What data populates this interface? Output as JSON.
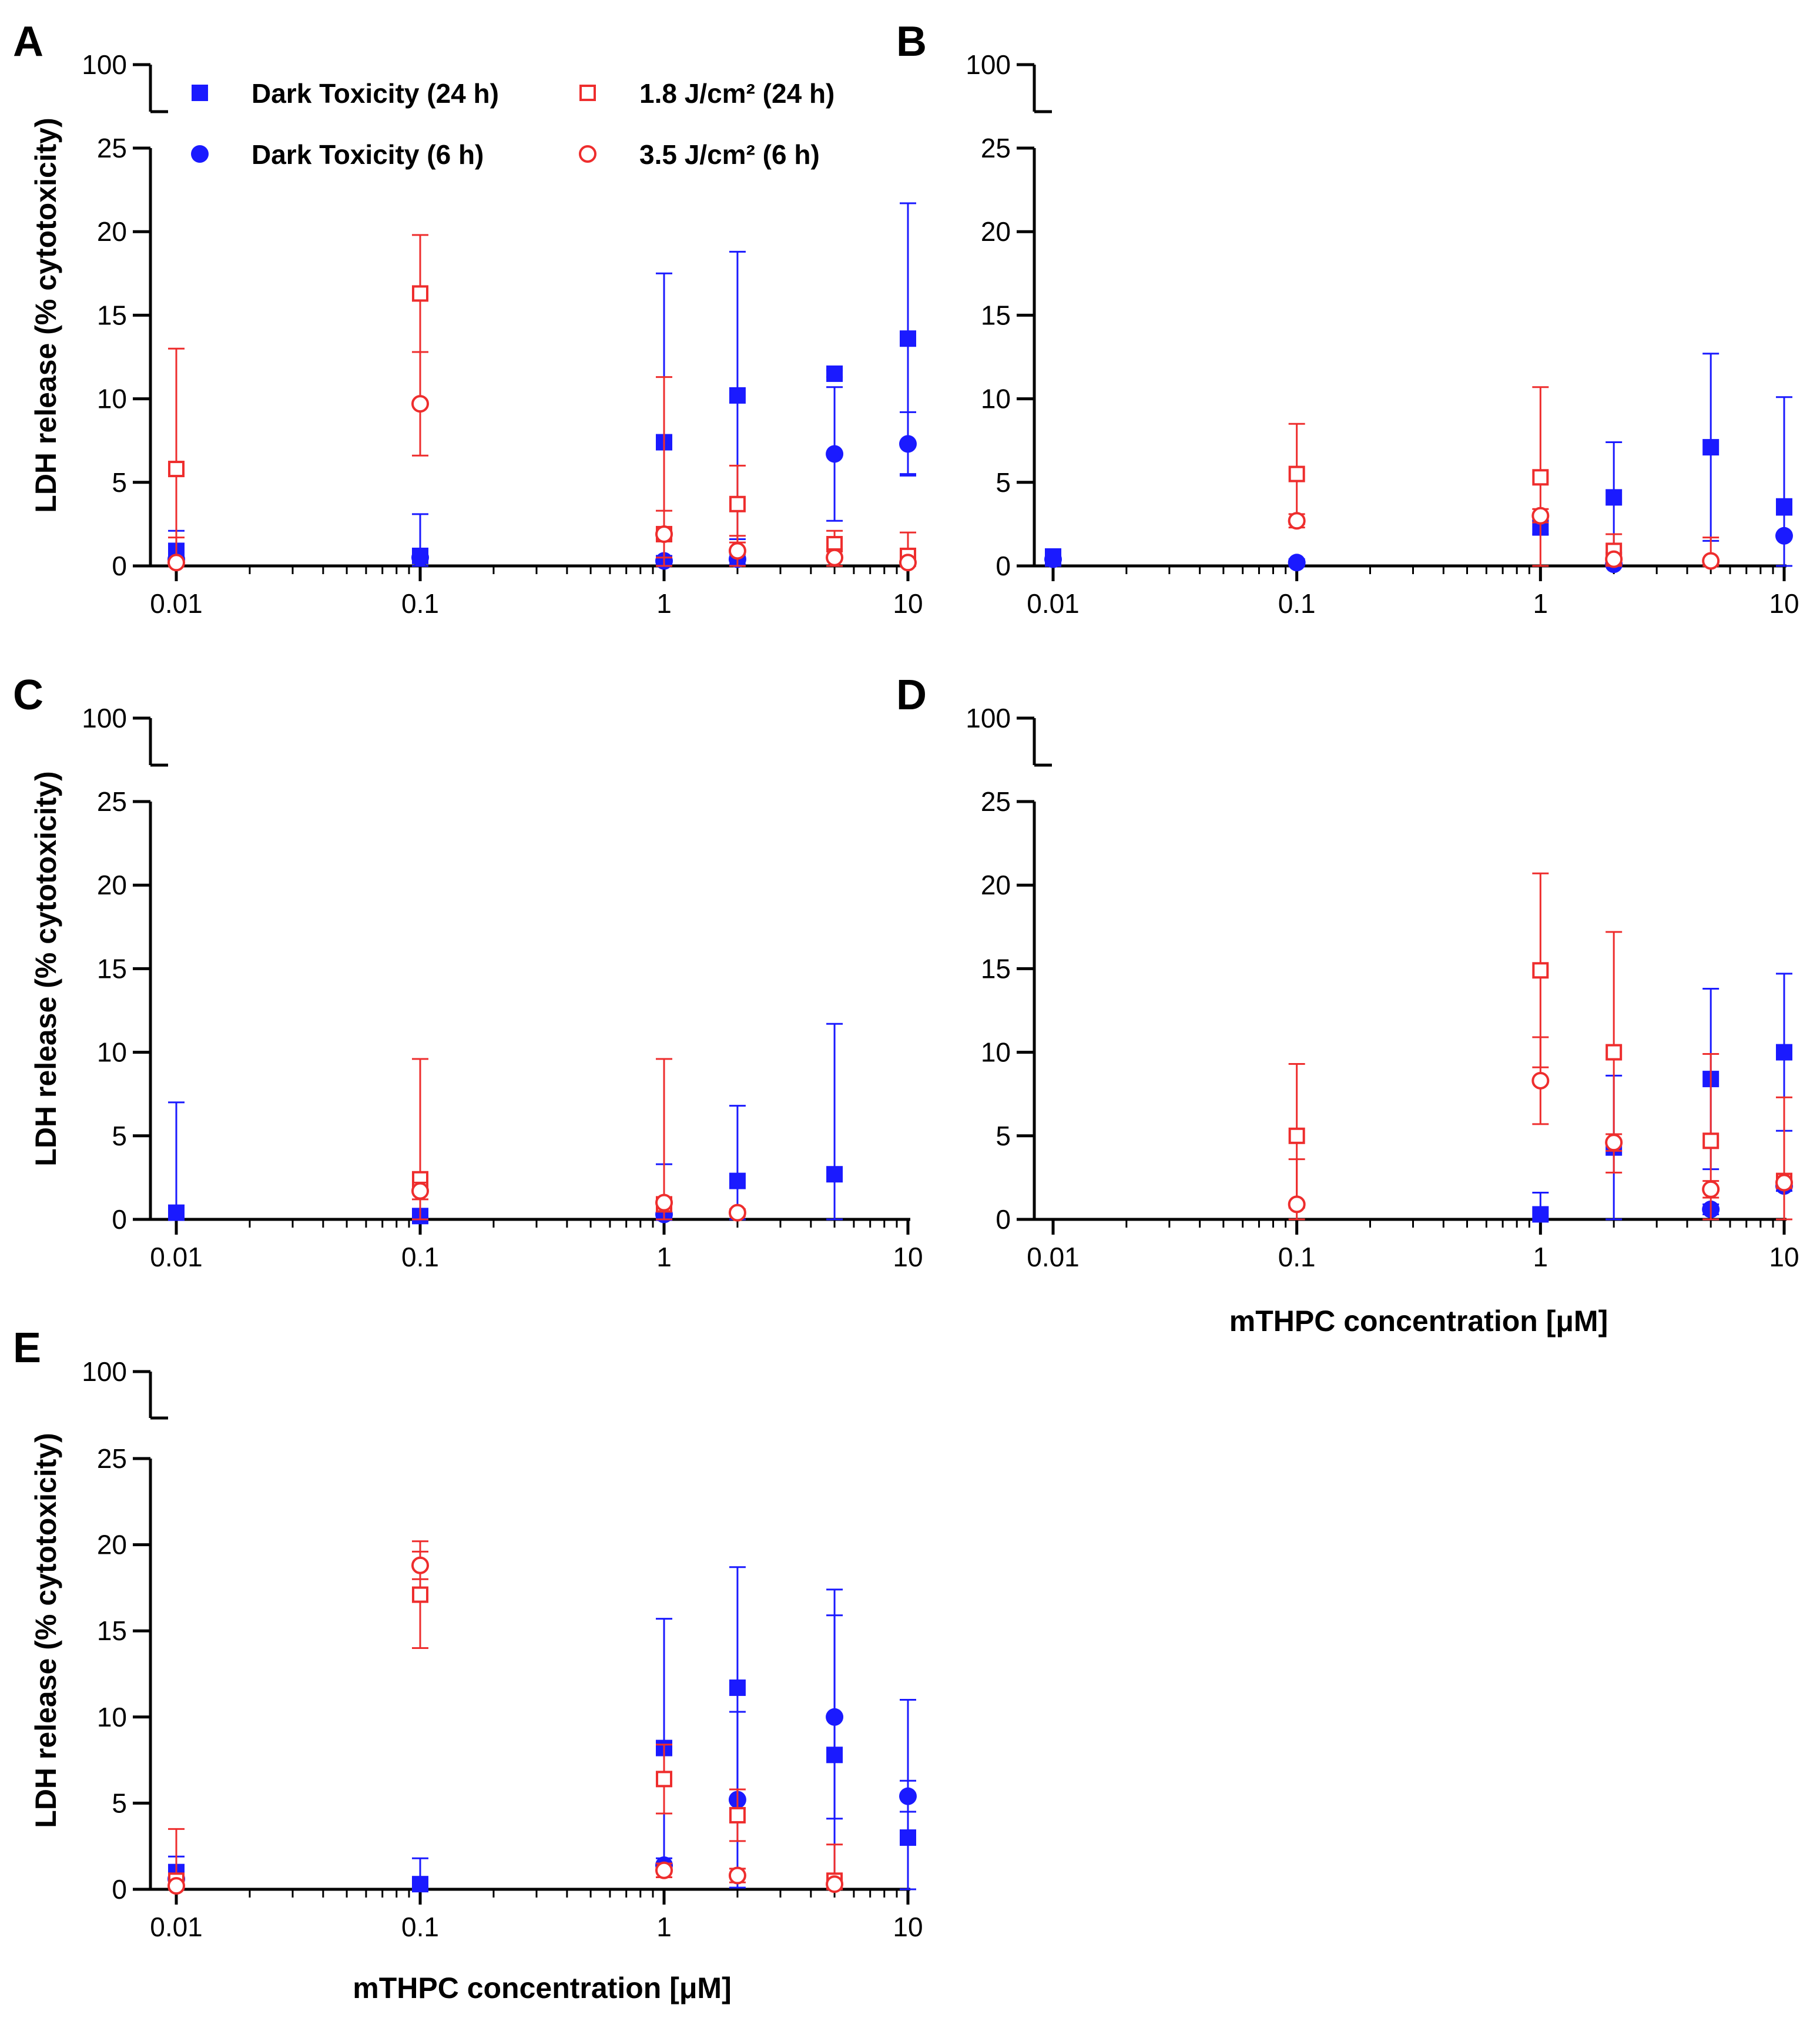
{
  "colors": {
    "dark": "#1a1aff",
    "light": "#ee2d2d",
    "axis": "#000000"
  },
  "legend": [
    {
      "label": "Dark Toxicity (24 h)",
      "marker": "square-filled",
      "color": "#1a1aff"
    },
    {
      "label": "Dark Toxicity (6 h)",
      "marker": "circle-filled",
      "color": "#1a1aff"
    },
    {
      "label": "1.8 J/cm² (24 h)",
      "marker": "square-open",
      "color": "#ee2d2d"
    },
    {
      "label": "3.5 J/cm² (6 h)",
      "marker": "circle-open",
      "color": "#ee2d2d"
    }
  ],
  "chart_data": [
    {
      "panel": "A",
      "type": "scatter",
      "xlabel": "",
      "ylabel": "LDH release (% cytotoxicity)",
      "xscale": "log",
      "xlim": [
        0.01,
        10
      ],
      "x_ticks": [
        "0.01",
        "0.1",
        "1",
        "10"
      ],
      "ylim_lower": [
        0,
        25
      ],
      "y_ticks": [
        "0",
        "5",
        "10",
        "15",
        "20",
        "25"
      ],
      "y_break_tick": "100",
      "series": [
        {
          "name": "Dark Toxicity (24 h)",
          "points": [
            {
              "x": 0.01,
              "y": 0.9,
              "err": 1.2
            },
            {
              "x": 0.1,
              "y": 0.6,
              "err": 2.5
            },
            {
              "x": 1,
              "y": 7.4,
              "err": 10.1
            },
            {
              "x": 2,
              "y": 10.2,
              "err": 8.6
            },
            {
              "x": 5,
              "y": 11.5,
              "err": 0.2
            },
            {
              "x": 10,
              "y": 13.6,
              "err": 8.1
            }
          ]
        },
        {
          "name": "Dark Toxicity (6 h)",
          "points": [
            {
              "x": 0.01,
              "y": 0.4,
              "err": 0.2
            },
            {
              "x": 0.1,
              "y": 0.5,
              "err": 0.3
            },
            {
              "x": 1,
              "y": 0.3,
              "err": 0.3
            },
            {
              "x": 2,
              "y": 0.4,
              "err": 0.3
            },
            {
              "x": 5,
              "y": 6.7,
              "err": 4.0
            },
            {
              "x": 10,
              "y": 7.3,
              "err": 1.9
            }
          ]
        },
        {
          "name": "1.8 J/cm² (24 h)",
          "points": [
            {
              "x": 0.01,
              "y": 5.8,
              "err": 7.2
            },
            {
              "x": 0.1,
              "y": 16.3,
              "err": 3.5
            },
            {
              "x": 1,
              "y": 1.9,
              "err": 9.4
            },
            {
              "x": 2,
              "y": 3.7,
              "err": 2.3
            },
            {
              "x": 5,
              "y": 1.3,
              "err": 0.8
            },
            {
              "x": 10,
              "y": 0.6,
              "err": 1.4
            }
          ]
        },
        {
          "name": "3.5 J/cm² (6 h)",
          "points": [
            {
              "x": 0.01,
              "y": 0.2,
              "err": 1.5
            },
            {
              "x": 0.1,
              "y": 9.7,
              "err": 3.1
            },
            {
              "x": 1,
              "y": 1.9,
              "err": 1.4
            },
            {
              "x": 2,
              "y": 0.9,
              "err": 0.9
            },
            {
              "x": 5,
              "y": 0.5,
              "err": 0.5
            },
            {
              "x": 10,
              "y": 0.2,
              "err": 0.3
            }
          ]
        }
      ]
    },
    {
      "panel": "B",
      "type": "scatter",
      "xlabel": "",
      "ylabel": "",
      "xscale": "log",
      "xlim": [
        0.01,
        10
      ],
      "x_ticks": [
        "0.01",
        "0.1",
        "1",
        "10"
      ],
      "ylim_lower": [
        0,
        25
      ],
      "y_ticks": [
        "0",
        "5",
        "10",
        "15",
        "20",
        "25"
      ],
      "y_break_tick": "100",
      "series": [
        {
          "name": "Dark Toxicity (24 h)",
          "points": [
            {
              "x": 0.01,
              "y": 0.5,
              "err": 0.5
            },
            {
              "x": 1,
              "y": 2.3,
              "err": 0.4
            },
            {
              "x": 2,
              "y": 4.1,
              "err": 3.3
            },
            {
              "x": 5,
              "y": 7.1,
              "err": 5.6
            },
            {
              "x": 10,
              "y": 3.5,
              "err": 6.6
            }
          ]
        },
        {
          "name": "Dark Toxicity (6 h)",
          "points": [
            {
              "x": 0.01,
              "y": 0.4,
              "err": 0.3
            },
            {
              "x": 0.1,
              "y": 0.2,
              "err": 0.2
            },
            {
              "x": 2,
              "y": 0.1,
              "err": 0.1
            },
            {
              "x": 10,
              "y": 1.8,
              "err": 2.2
            }
          ]
        },
        {
          "name": "1.8 J/cm² (24 h)",
          "points": [
            {
              "x": 0.1,
              "y": 5.5,
              "err": 3.0
            },
            {
              "x": 1,
              "y": 5.3,
              "err": 5.4
            },
            {
              "x": 2,
              "y": 0.9,
              "err": 1.0
            }
          ]
        },
        {
          "name": "3.5 J/cm² (6 h)",
          "points": [
            {
              "x": 0.1,
              "y": 2.7,
              "err": 0.4
            },
            {
              "x": 1,
              "y": 3.0,
              "err": 0.4
            },
            {
              "x": 2,
              "y": 0.4,
              "err": 0.3
            },
            {
              "x": 5,
              "y": 0.3,
              "err": 1.4
            }
          ]
        }
      ]
    },
    {
      "panel": "C",
      "type": "scatter",
      "xlabel": "",
      "ylabel": "LDH release (% cytotoxicity)",
      "xscale": "log",
      "xlim": [
        0.01,
        10
      ],
      "x_ticks": [
        "0.01",
        "0.1",
        "1",
        "10"
      ],
      "ylim_lower": [
        0,
        25
      ],
      "y_ticks": [
        "0",
        "5",
        "10",
        "15",
        "20",
        "25"
      ],
      "y_break_tick": "100",
      "series": [
        {
          "name": "Dark Toxicity (24 h)",
          "points": [
            {
              "x": 0.01,
              "y": 0.4,
              "err": 6.6
            },
            {
              "x": 0.1,
              "y": 0.2,
              "err": 0.2
            },
            {
              "x": 1,
              "y": 0.4,
              "err": 2.9
            },
            {
              "x": 2,
              "y": 2.3,
              "err": 4.5
            },
            {
              "x": 5,
              "y": 2.7,
              "err": 9.0
            }
          ]
        },
        {
          "name": "Dark Toxicity (6 h)",
          "points": [
            {
              "x": 1,
              "y": 0.3,
              "err": 0.2
            }
          ]
        },
        {
          "name": "1.8 J/cm² (24 h)",
          "points": [
            {
              "x": 0.1,
              "y": 2.4,
              "err": 7.2
            },
            {
              "x": 1,
              "y": 0.9,
              "err": 8.7
            }
          ]
        },
        {
          "name": "3.5 J/cm² (6 h)",
          "points": [
            {
              "x": 0.1,
              "y": 1.7,
              "err": 0.5
            },
            {
              "x": 1,
              "y": 1.0,
              "err": 0.3
            },
            {
              "x": 2,
              "y": 0.4,
              "err": 0.2
            }
          ]
        }
      ]
    },
    {
      "panel": "D",
      "type": "scatter",
      "xlabel": "mTHPC concentration [μM]",
      "ylabel": "",
      "xscale": "log",
      "xlim": [
        0.01,
        10
      ],
      "x_ticks": [
        "0.01",
        "0.1",
        "1",
        "10"
      ],
      "ylim_lower": [
        0,
        25
      ],
      "y_ticks": [
        "0",
        "5",
        "10",
        "15",
        "20",
        "25"
      ],
      "y_break_tick": "100",
      "series": [
        {
          "name": "Dark Toxicity (24 h)",
          "points": [
            {
              "x": 1,
              "y": 0.3,
              "err": 1.3
            },
            {
              "x": 2,
              "y": 4.3,
              "err": 4.3
            },
            {
              "x": 5,
              "y": 8.4,
              "err": 5.4
            },
            {
              "x": 10,
              "y": 10.0,
              "err": 4.7
            }
          ]
        },
        {
          "name": "Dark Toxicity (6 h)",
          "points": [
            {
              "x": 5,
              "y": 0.6,
              "err": 0.3
            },
            {
              "x": 10,
              "y": 2.0,
              "err": 0.3
            }
          ]
        },
        {
          "name": "1.8 J/cm² (24 h)",
          "points": [
            {
              "x": 0.1,
              "y": 5.0,
              "err": 4.3
            },
            {
              "x": 1,
              "y": 14.9,
              "err": 5.8
            },
            {
              "x": 2,
              "y": 10.0,
              "err": 7.2
            },
            {
              "x": 5,
              "y": 4.7,
              "err": 5.2
            },
            {
              "x": 10,
              "y": 2.3,
              "err": 5.0
            }
          ]
        },
        {
          "name": "3.5 J/cm² (6 h)",
          "points": [
            {
              "x": 0.1,
              "y": 0.9,
              "err": 2.7
            },
            {
              "x": 1,
              "y": 8.3,
              "err": 2.6
            },
            {
              "x": 2,
              "y": 4.6,
              "err": 0.5
            },
            {
              "x": 5,
              "y": 1.8,
              "err": 0.5
            },
            {
              "x": 10,
              "y": 2.2,
              "err": 0.3
            }
          ]
        }
      ]
    },
    {
      "panel": "E",
      "type": "scatter",
      "xlabel": "mTHPC concentration [μM]",
      "ylabel": "LDH release (% cytotoxicity)",
      "xscale": "log",
      "xlim": [
        0.01,
        10
      ],
      "x_ticks": [
        "0.01",
        "0.1",
        "1",
        "10"
      ],
      "ylim_lower": [
        0,
        25
      ],
      "y_ticks": [
        "0",
        "5",
        "10",
        "15",
        "20",
        "25"
      ],
      "y_break_tick": "100",
      "series": [
        {
          "name": "Dark Toxicity (24 h)",
          "points": [
            {
              "x": 0.01,
              "y": 1.0,
              "err": 0.9
            },
            {
              "x": 0.1,
              "y": 0.3,
              "err": 1.5
            },
            {
              "x": 1,
              "y": 8.2,
              "err": 7.5
            },
            {
              "x": 2,
              "y": 11.7,
              "err": 7.0
            },
            {
              "x": 5,
              "y": 7.8,
              "err": 9.6
            },
            {
              "x": 10,
              "y": 3.0,
              "err": 8.0
            }
          ]
        },
        {
          "name": "Dark Toxicity (6 h)",
          "points": [
            {
              "x": 0.01,
              "y": 0.6,
              "err": 0.5
            },
            {
              "x": 1,
              "y": 1.4,
              "err": 0.4
            },
            {
              "x": 2,
              "y": 5.2,
              "err": 5.1
            },
            {
              "x": 5,
              "y": 10.0,
              "err": 5.9
            },
            {
              "x": 10,
              "y": 5.4,
              "err": 0.9
            }
          ]
        },
        {
          "name": "1.8 J/cm² (24 h)",
          "points": [
            {
              "x": 0.01,
              "y": 0.5,
              "err": 3.0
            },
            {
              "x": 0.1,
              "y": 17.1,
              "err": 3.1
            },
            {
              "x": 1,
              "y": 6.4,
              "err": 2.0
            },
            {
              "x": 2,
              "y": 4.3,
              "err": 1.5
            },
            {
              "x": 5,
              "y": 0.5,
              "err": 2.1
            }
          ]
        },
        {
          "name": "3.5 J/cm² (6 h)",
          "points": [
            {
              "x": 0.01,
              "y": 0.2,
              "err": 0.2
            },
            {
              "x": 0.1,
              "y": 18.8,
              "err": 0.8
            },
            {
              "x": 1,
              "y": 1.1,
              "err": 0.4
            },
            {
              "x": 2,
              "y": 0.8,
              "err": 0.4
            },
            {
              "x": 5,
              "y": 0.3,
              "err": 0.2
            }
          ]
        }
      ]
    }
  ]
}
